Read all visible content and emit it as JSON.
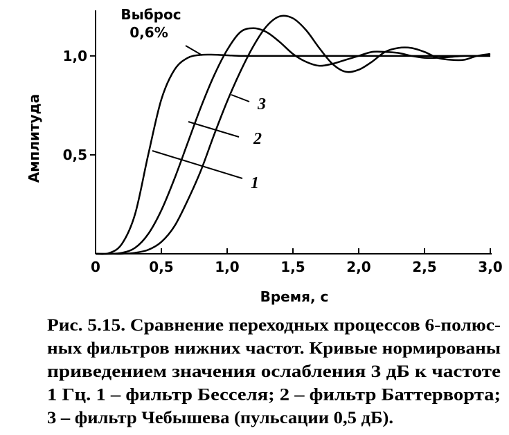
{
  "chart_data": {
    "type": "line",
    "x": [
      0,
      0.1,
      0.2,
      0.3,
      0.4,
      0.5,
      0.6,
      0.7,
      0.8,
      0.9,
      1.0,
      1.1,
      1.2,
      1.3,
      1.4,
      1.5,
      1.6,
      1.7,
      1.8,
      1.9,
      2.0,
      2.1,
      2.2,
      2.3,
      2.4,
      2.5,
      2.6,
      2.7,
      2.8,
      2.9,
      3.0
    ],
    "series": [
      {
        "name": "1",
        "color": "#000000",
        "values": [
          0,
          0.003,
          0.05,
          0.2,
          0.5,
          0.78,
          0.93,
          0.99,
          1.005,
          1.006,
          1.003,
          1.0,
          1.0,
          1.0,
          1.0,
          1.0,
          1.0,
          1.0,
          1.0,
          1.0,
          1.0,
          1.0,
          1.0,
          1.0,
          1.0,
          1.0,
          1.0,
          1.0,
          1.0,
          1.0,
          1.0
        ]
      },
      {
        "name": "2",
        "color": "#000000",
        "values": [
          0,
          0,
          0.005,
          0.03,
          0.1,
          0.22,
          0.38,
          0.56,
          0.74,
          0.9,
          1.03,
          1.12,
          1.14,
          1.12,
          1.07,
          1.01,
          0.97,
          0.95,
          0.96,
          0.98,
          1.0,
          1.02,
          1.02,
          1.015,
          1.0,
          0.99,
          0.99,
          0.995,
          1.0,
          1.0,
          1.0
        ]
      },
      {
        "name": "3",
        "color": "#000000",
        "values": [
          0,
          0,
          0,
          0.005,
          0.02,
          0.06,
          0.14,
          0.27,
          0.42,
          0.6,
          0.77,
          0.92,
          1.05,
          1.15,
          1.2,
          1.19,
          1.13,
          1.04,
          0.96,
          0.92,
          0.93,
          0.97,
          1.02,
          1.04,
          1.04,
          1.02,
          0.99,
          0.98,
          0.98,
          1.0,
          1.01
        ]
      }
    ],
    "xlabel": "Время, с",
    "ylabel": "Амплитуда",
    "xlim": [
      0,
      3
    ],
    "ylim": [
      0,
      1.23
    ],
    "xticks": [
      0,
      {
        "value": 0.5,
        "label": "0,5"
      },
      {
        "value": 1,
        "label": "1,0"
      },
      {
        "value": 1.5,
        "label": "1,5"
      },
      {
        "value": 2,
        "label": "2,0"
      },
      {
        "value": 2.5,
        "label": "2,5"
      },
      {
        "value": 3,
        "label": "3,0"
      }
    ],
    "yticks": [
      {
        "value": 0.5,
        "label": "0,5"
      },
      {
        "value": 1,
        "label": "1,0"
      }
    ],
    "annotation": [
      "Выброс",
      "0,6%"
    ]
  },
  "caption": [
    "Рис. 5.15. Сравнение переходных процессов 6-полюс-",
    "ных фильтров нижних частот. Кривые нормированы",
    "приведением значения ослабления 3 дБ к частоте",
    "1 Гц. 1 – фильтр Бесселя; 2 – фильтр Баттерворта;",
    "3 – фильтр Чебышева (пульсации 0,5 дБ)."
  ]
}
